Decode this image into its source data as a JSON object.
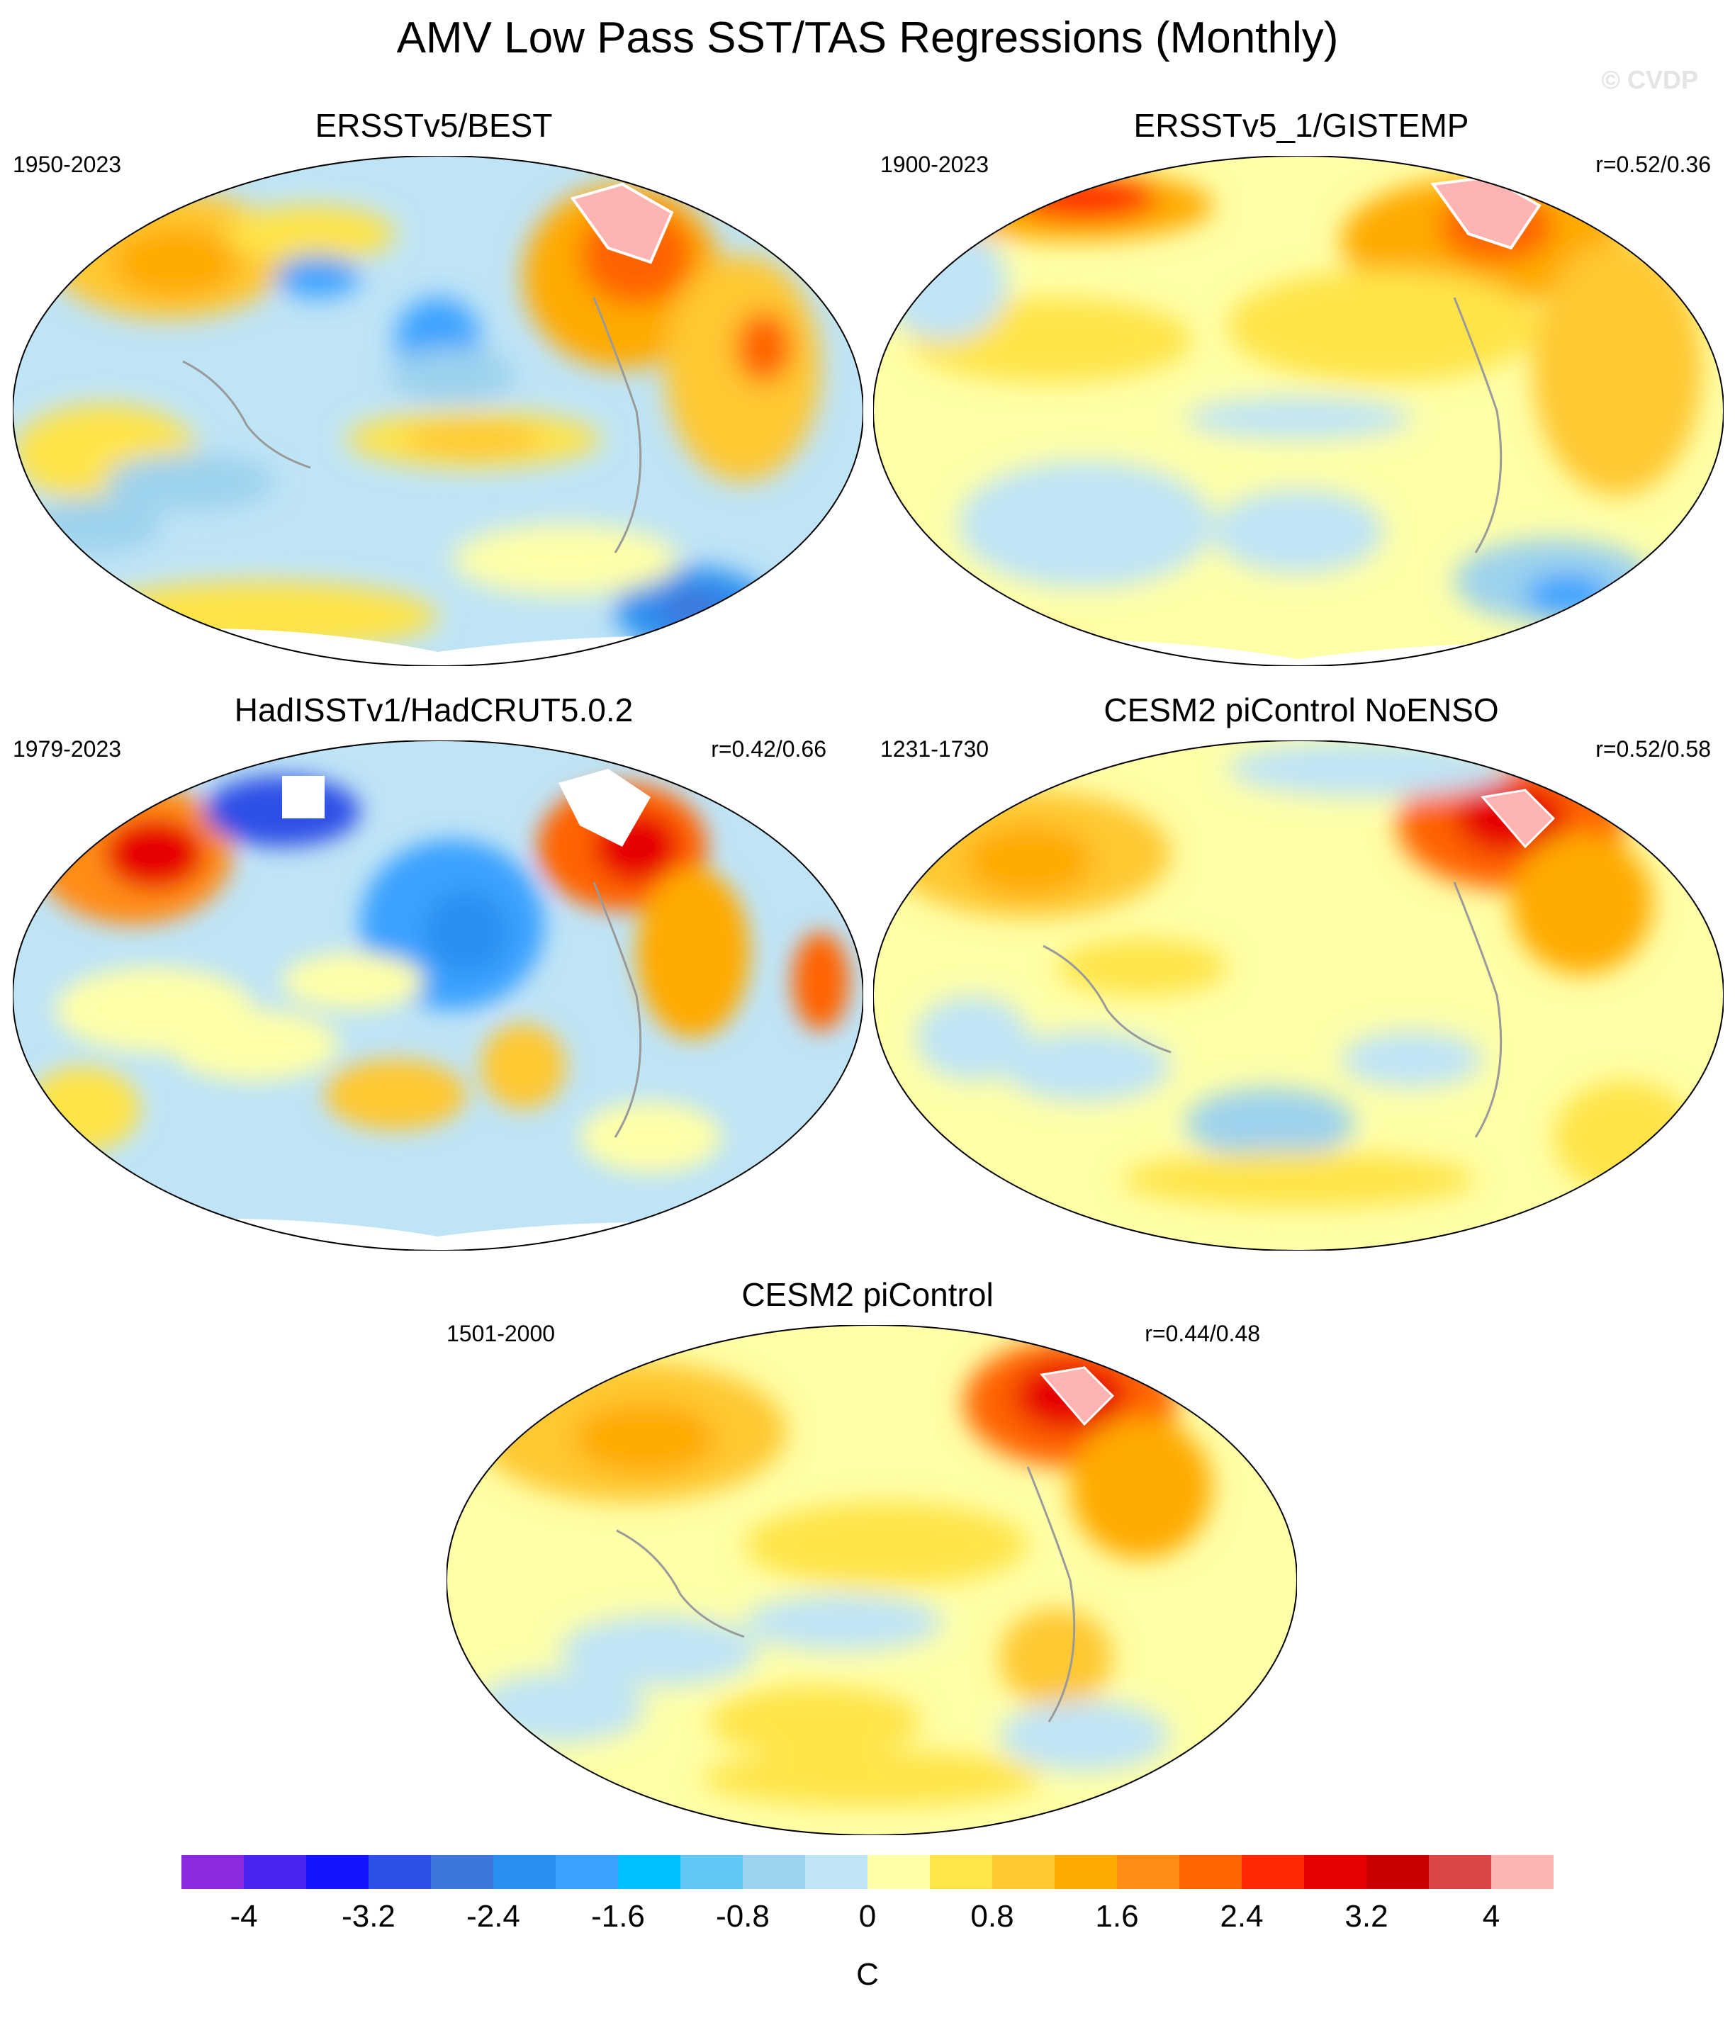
{
  "figure": {
    "title": "AMV Low Pass SST/TAS Regressions (Monthly)",
    "copyright": "© CVDP"
  },
  "panels": [
    {
      "id": "p1",
      "title": "ERSSTv5/BEST",
      "years": "1950-2023",
      "r": ""
    },
    {
      "id": "p2",
      "title": "ERSSTv5_1/GISTEMP",
      "years": "1900-2023",
      "r": "r=0.52/0.36"
    },
    {
      "id": "p3",
      "title": "HadISSTv1/HadCRUT5.0.2",
      "years": "1979-2023",
      "r": "r=0.42/0.66"
    },
    {
      "id": "p4",
      "title": "CESM2 piControl NoENSO",
      "years": "1231-1730",
      "r": "r=0.52/0.58"
    },
    {
      "id": "p5",
      "title": "CESM2 piControl",
      "years": "1501-2000",
      "r": "r=0.44/0.48"
    }
  ],
  "colorbar": {
    "unit": "C",
    "colors": [
      "#8a2be2",
      "#4a24ee",
      "#1414ff",
      "#2e50e6",
      "#3c78dc",
      "#2a90f0",
      "#3aa2ff",
      "#00c0ff",
      "#60c8f4",
      "#9cd2ee",
      "#bfe4f6",
      "#ffffa8",
      "#ffe44a",
      "#ffc832",
      "#ffaa00",
      "#ff8c14",
      "#ff6400",
      "#ff2800",
      "#e60000",
      "#c80000",
      "#dc4646",
      "#ffb4b4"
    ],
    "labels": [
      "-4",
      "-3.2",
      "-2.4",
      "-1.6",
      "-0.8",
      "0",
      "0.8",
      "1.6",
      "2.4",
      "3.2",
      "4"
    ]
  },
  "icons": {
    "map_panels": "world-map-regression-field"
  }
}
